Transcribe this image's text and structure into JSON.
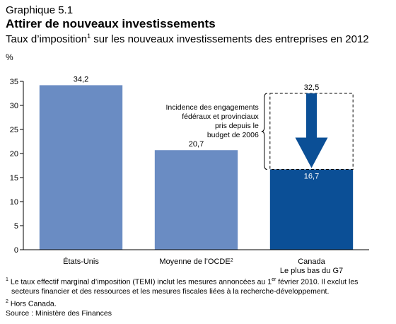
{
  "header": {
    "label": "Graphique 5.1",
    "title": "Attirer de nouveaux investissements",
    "subtitle_pre": "Taux d’imposition",
    "subtitle_sup": "1",
    "subtitle_post": " sur les nouveaux investissements des entreprises en 2012"
  },
  "chart_data": {
    "type": "bar",
    "categories": [
      "États-Unis",
      "Moyenne de l’OCDE",
      "Canada"
    ],
    "category_sup": [
      "",
      "2",
      ""
    ],
    "category_sublabel": [
      "",
      "",
      "Le plus bas du G7"
    ],
    "values": [
      34.2,
      20.7,
      16.7
    ],
    "value_labels": [
      "34,2",
      "20,7",
      "16,7"
    ],
    "previous_value": 32.5,
    "previous_value_label": "32,5",
    "ylabel": "%",
    "ylim": [
      0,
      35
    ],
    "yticks": [
      0,
      5,
      10,
      15,
      20,
      25,
      30,
      35
    ],
    "grid": false,
    "bar_colors": [
      "#6a8cc3",
      "#6a8cc3",
      "#0b4f96"
    ],
    "arrow_color": "#0b4f96",
    "annotation_lines": [
      "Incidence des engagements",
      "fédéraux et provinciaux",
      "pris depuis le",
      "budget de 2006"
    ]
  },
  "footnotes": {
    "note1_num": "1",
    "note1_a": " Le taux effectif marginal d’imposition (TEMI) inclut les mesures annoncées au 1",
    "note1_sup": "er",
    "note1_b": " février 2010. Il exclut les",
    "note1_c": "secteurs financier et des ressources et les mesures fiscales liées à la recherche-développement.",
    "note2_num": "2",
    "note2": " Hors Canada.",
    "source": "Source : Ministère des Finances"
  }
}
